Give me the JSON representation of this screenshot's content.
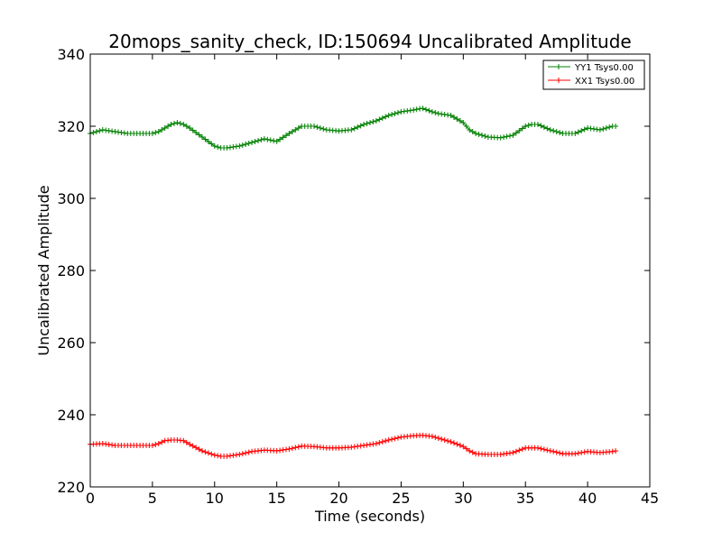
{
  "chart_data": {
    "type": "line",
    "title": "20mops_sanity_check, ID:150694 Uncalibrated Amplitude",
    "xlabel": "Time (seconds)",
    "ylabel": "Uncalibrated Amplitude",
    "xlim": [
      0,
      45
    ],
    "ylim": [
      220,
      340
    ],
    "xticks": [
      0,
      5,
      10,
      15,
      20,
      25,
      30,
      35,
      40,
      45
    ],
    "yticks": [
      220,
      240,
      260,
      280,
      300,
      320,
      340
    ],
    "xtick_labels": [
      "0",
      "5",
      "10",
      "15",
      "20",
      "25",
      "30",
      "35",
      "40",
      "45"
    ],
    "ytick_labels": [
      "220",
      "240",
      "260",
      "280",
      "300",
      "320",
      "340"
    ],
    "grid": false,
    "legend_position": "top-right",
    "marker": "plus",
    "series": [
      {
        "name": "YY1 Tsys0.00",
        "color": "#008000",
        "x": [
          0,
          1,
          2,
          3,
          4,
          5,
          5.5,
          6,
          6.5,
          7,
          7.5,
          8,
          9,
          10,
          10.5,
          11,
          12,
          13,
          14,
          15,
          16,
          17,
          18,
          19,
          20,
          21,
          22,
          23,
          24,
          25,
          26,
          26.7,
          27.5,
          28,
          29,
          30,
          30.5,
          31,
          32,
          33,
          34,
          35,
          35.5,
          36,
          37,
          38,
          39,
          40,
          41,
          42,
          42.3
        ],
        "y": [
          318,
          319,
          318.5,
          318,
          318,
          318,
          318.5,
          319.5,
          320.5,
          321,
          320.5,
          319.5,
          317,
          314.5,
          314,
          314,
          314.5,
          315.5,
          316.5,
          315.8,
          318,
          320,
          320,
          319,
          318.7,
          319,
          320.5,
          321.5,
          323,
          324,
          324.5,
          325,
          324,
          323.5,
          323,
          321,
          319,
          318,
          317,
          316.8,
          317.5,
          320,
          320.5,
          320.5,
          319,
          318,
          318,
          319.5,
          319,
          320,
          320
        ]
      },
      {
        "name": "XX1 Tsys0.00",
        "color": "#ff0000",
        "x": [
          0,
          1,
          2,
          3,
          4,
          5,
          5.5,
          6,
          6.5,
          7,
          7.5,
          8,
          9,
          10,
          10.5,
          11,
          12,
          13,
          14,
          15,
          16,
          17,
          18,
          19,
          20,
          21,
          22,
          23,
          24,
          25,
          26,
          26.7,
          27.5,
          28,
          29,
          30,
          30.5,
          31,
          32,
          33,
          34,
          35,
          35.5,
          36,
          37,
          38,
          39,
          40,
          41,
          42,
          42.3
        ],
        "y": [
          231.8,
          232,
          231.5,
          231.5,
          231.5,
          231.5,
          232,
          232.8,
          233,
          233,
          232.8,
          231.8,
          230,
          228.8,
          228.5,
          228.5,
          229,
          229.8,
          230.2,
          230,
          230.5,
          231.3,
          231.2,
          230.8,
          230.8,
          231,
          231.5,
          232,
          233,
          233.8,
          234.2,
          234.3,
          234,
          233.5,
          232.5,
          231.2,
          230,
          229.2,
          229,
          229,
          229.5,
          230.8,
          230.8,
          230.8,
          230,
          229.2,
          229.2,
          229.8,
          229.5,
          229.8,
          230
        ]
      }
    ]
  }
}
